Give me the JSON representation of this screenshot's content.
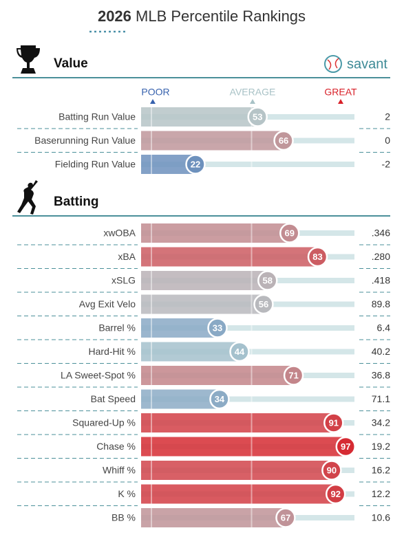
{
  "chart_data": {
    "type": "percentile",
    "year": "2026",
    "title": "MLB Percentile Rankings",
    "brand": "savant",
    "legend": [
      "POOR",
      "AVERAGE",
      "GREAT"
    ],
    "xlim": [
      0,
      100
    ],
    "xticks": [
      0,
      50
    ],
    "sections": [
      {
        "name": "Value",
        "rows": [
          {
            "label": "Batting Run Value",
            "percentile": 53,
            "stat": "2"
          },
          {
            "label": "Baserunning Run Value",
            "percentile": 66,
            "stat": "0"
          },
          {
            "label": "Fielding Run Value",
            "percentile": 22,
            "stat": "-2"
          }
        ]
      },
      {
        "name": "Batting",
        "rows": [
          {
            "label": "xwOBA",
            "percentile": 69,
            "stat": ".346"
          },
          {
            "label": "xBA",
            "percentile": 83,
            "stat": ".280"
          },
          {
            "label": "xSLG",
            "percentile": 58,
            "stat": ".418"
          },
          {
            "label": "Avg Exit Velo",
            "percentile": 56,
            "stat": "89.8"
          },
          {
            "label": "Barrel %",
            "percentile": 33,
            "stat": "6.4"
          },
          {
            "label": "Hard-Hit %",
            "percentile": 44,
            "stat": "40.2"
          },
          {
            "label": "LA Sweet-Spot %",
            "percentile": 71,
            "stat": "36.8"
          },
          {
            "label": "Bat Speed",
            "percentile": 34,
            "stat": "71.1"
          },
          {
            "label": "Squared-Up %",
            "percentile": 91,
            "stat": "34.2"
          },
          {
            "label": "Chase %",
            "percentile": 97,
            "stat": "19.2"
          },
          {
            "label": "Whiff %",
            "percentile": 90,
            "stat": "16.2"
          },
          {
            "label": "K %",
            "percentile": 92,
            "stat": "12.2"
          },
          {
            "label": "BB %",
            "percentile": 67,
            "stat": "10.6"
          }
        ]
      }
    ]
  }
}
